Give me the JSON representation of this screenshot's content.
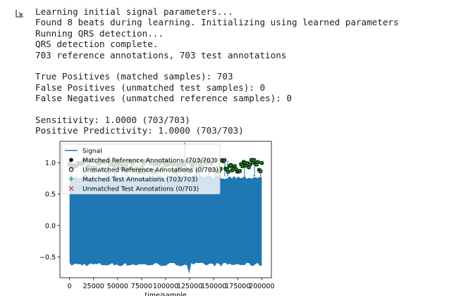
{
  "output": {
    "icon": "output-redirect-icon",
    "stdout_lines": [
      "Learning initial signal parameters...",
      "Found 8 beats during learning. Initializing using learned parameters",
      "Running QRS detection...",
      "QRS detection complete.",
      "703 reference annotations, 703 test annotations",
      "",
      "True Positives (matched samples): 703",
      "False Positives (unmatched test samples): 0",
      "False Negatives (unmatched reference samples): 0",
      "",
      "Sensitivity: 1.0000 (703/703)",
      "Positive Predictivity: 1.0000 (703/703)"
    ]
  },
  "chart_data": {
    "type": "line",
    "xlabel": "time/sample",
    "ylabel": "",
    "xlim": [
      -10000,
      210000
    ],
    "ylim": [
      -0.83,
      1.34
    ],
    "xticks": [
      0,
      25000,
      50000,
      75000,
      100000,
      125000,
      150000,
      175000,
      200000
    ],
    "yticks": [
      -0.5,
      0.0,
      0.5,
      1.0
    ],
    "xtick_labels": [
      "0",
      "25000",
      "50000",
      "75000",
      "100000",
      "125000",
      "150000",
      "175000",
      "200000"
    ],
    "ytick_labels": [
      "−0.5",
      "0.0",
      "0.5",
      "1.0"
    ],
    "grid": false,
    "legend_position": "upper left",
    "series": [
      {
        "name": "Signal",
        "kind": "line",
        "color": "#1f77b4",
        "x": [
          0,
          200000
        ],
        "lower": -0.62,
        "upper": 0.8,
        "min_spike": -0.77,
        "max_spike": 1.32
      },
      {
        "name": "Matched Reference Annotations (703/703)",
        "kind": "marker",
        "marker": "circle",
        "color": "#000000",
        "x_range": [
          0,
          200000
        ],
        "y_range": [
          0.85,
          1.05
        ],
        "count": 703
      },
      {
        "name": "Unmatched Reference Annotations (0/703)",
        "kind": "marker",
        "marker": "open-circle",
        "color": "#000000",
        "count": 0
      },
      {
        "name": "Matched Test Annotations (703/703)",
        "kind": "marker",
        "marker": "plus",
        "color": "#2ca02c",
        "x_range": [
          0,
          200000
        ],
        "y_range": [
          0.85,
          1.05
        ],
        "count": 703
      },
      {
        "name": "Unmatched Test Annotations (0/703)",
        "kind": "marker",
        "marker": "x",
        "color": "#d62728",
        "count": 0
      }
    ]
  }
}
